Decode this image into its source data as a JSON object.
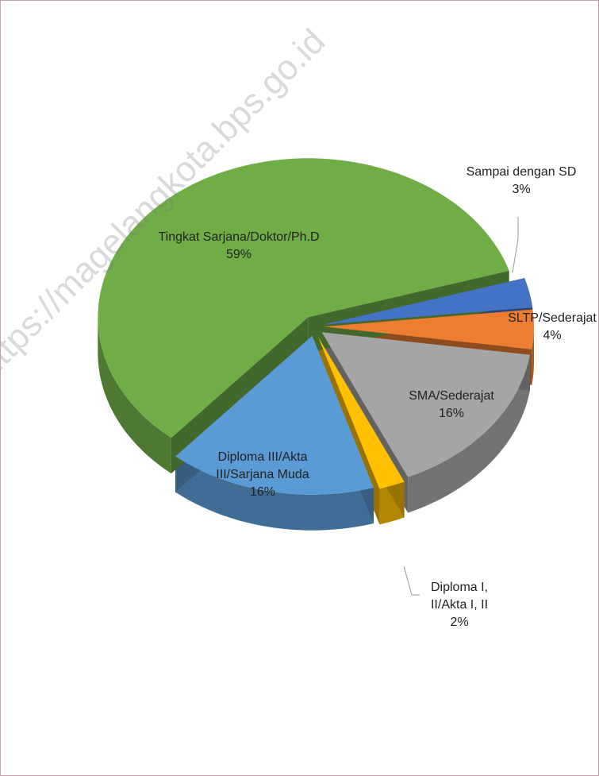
{
  "chart_data": {
    "type": "pie",
    "watermark": "https://magelangkota.bps.go.id",
    "categories": [
      "Sampai dengan SD",
      "SLTP/Sederajat",
      "SMA/Sederajat",
      "Diploma I, II/Akta I, II",
      "Diploma III/Akta III/Sarjana Muda",
      "Tingkat Sarjana/Doktor/Ph.D"
    ],
    "values": [
      3,
      4,
      16,
      2,
      16,
      59
    ],
    "value_labels": [
      "3%",
      "4%",
      "16%",
      "2%",
      "16%",
      "59%"
    ],
    "colors": [
      "#4472c4",
      "#ed7d31",
      "#a5a5a5",
      "#ffc000",
      "#5b9bd5",
      "#70ad47"
    ]
  }
}
